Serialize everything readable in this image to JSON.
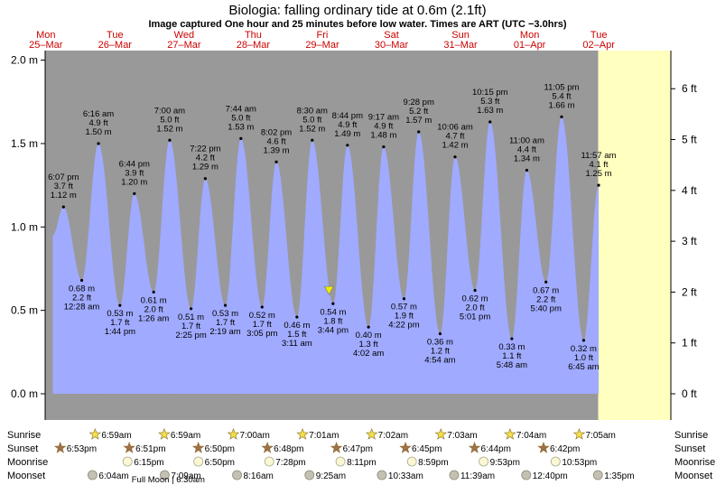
{
  "title": "Biologia: falling  ordinary tide at 0.6m (2.1ft)",
  "subtitle": "Image captured One hour and 25 minutes before low water. Times are ART (UTC −3.0hrs)",
  "colors": {
    "day_band": "#ffffc0",
    "night_band": "#999999",
    "tide_fill": "#a0aaff",
    "day_header": "#cc0000",
    "marker": "#eeee00"
  },
  "days": [
    {
      "dow": "Mon",
      "date": "25–Mar",
      "x": 0.0
    },
    {
      "dow": "Tue",
      "date": "26–Mar",
      "x": 1.0
    },
    {
      "dow": "Wed",
      "date": "27–Mar",
      "x": 2.0
    },
    {
      "dow": "Thu",
      "date": "28–Mar",
      "x": 3.0
    },
    {
      "dow": "Fri",
      "date": "29–Mar",
      "x": 4.0
    },
    {
      "dow": "Sat",
      "date": "30–Mar",
      "x": 5.0
    },
    {
      "dow": "Sun",
      "date": "31–Mar",
      "x": 6.0
    },
    {
      "dow": "Mon",
      "date": "01–Apr",
      "x": 7.0
    },
    {
      "dow": "Tue",
      "date": "02–Apr",
      "x": 8.0
    }
  ],
  "chart_data": {
    "type": "area",
    "x_unit": "days since Mon 25–Mar 00:00",
    "ylabel_left": "m",
    "ylabel_right": "ft",
    "ylim": [
      -0.05,
      2.1
    ],
    "xlim": [
      -0.2,
      8.5
    ],
    "y_ticks_m": [
      {
        "v": 0.0,
        "label": "0.0 m"
      },
      {
        "v": 0.5,
        "label": "0.5 m"
      },
      {
        "v": 1.0,
        "label": "1.0 m"
      },
      {
        "v": 1.5,
        "label": "1.5 m"
      },
      {
        "v": 2.0,
        "label": "2.0 m"
      }
    ],
    "y_ticks_ft": [
      {
        "v": 0,
        "label": "0 ft"
      },
      {
        "v": 1,
        "label": "1 ft"
      },
      {
        "v": 2,
        "label": "2 ft"
      },
      {
        "v": 3,
        "label": "3 ft"
      },
      {
        "v": 4,
        "label": "4 ft"
      },
      {
        "v": 5,
        "label": "5 ft"
      },
      {
        "v": 6,
        "label": "6 ft"
      }
    ],
    "nights": [
      [
        0.2874,
        1.491
      ],
      [
        1.2875,
        2.491
      ],
      [
        2.2868,
        3.491
      ],
      [
        3.2855,
        4.491
      ],
      [
        4.2854,
        5.491
      ],
      [
        5.2808,
        6.491
      ],
      [
        6.2828,
        7.491
      ],
      [
        7.2806,
        8.491
      ]
    ],
    "extremes": [
      {
        "x": 0.7549,
        "m": 1.12,
        "time": "6:07 pm",
        "ft": "3.7 ft",
        "m_label": "1.12 m",
        "type": "high"
      },
      {
        "x": 1.0194,
        "m": 0.68,
        "time": "12:28 am",
        "ft": "2.2 ft",
        "m_label": "0.68 m",
        "type": "low"
      },
      {
        "x": 1.2611,
        "m": 1.5,
        "time": "6:16 am",
        "ft": "4.9 ft",
        "m_label": "1.50 m",
        "type": "high"
      },
      {
        "x": 1.5722,
        "m": 0.53,
        "time": "1:44 pm",
        "ft": "1.7 ft",
        "m_label": "0.53 m",
        "type": "low"
      },
      {
        "x": 1.7806,
        "m": 1.2,
        "time": "6:44 pm",
        "ft": "3.9 ft",
        "m_label": "1.20 m",
        "type": "high"
      },
      {
        "x": 2.0597,
        "m": 0.61,
        "time": "1:26 am",
        "ft": "2.0 ft",
        "m_label": "0.61 m",
        "type": "low"
      },
      {
        "x": 2.2917,
        "m": 1.52,
        "time": "7:00 am",
        "ft": "5.0 ft",
        "m_label": "1.52 m",
        "type": "high"
      },
      {
        "x": 2.6007,
        "m": 0.51,
        "time": "2:25 pm",
        "ft": "1.7 ft",
        "m_label": "0.51 m",
        "type": "low"
      },
      {
        "x": 2.8069,
        "m": 1.29,
        "time": "7:22 pm",
        "ft": "4.2 ft",
        "m_label": "1.29 m",
        "type": "high"
      },
      {
        "x": 3.0965,
        "m": 0.53,
        "time": "2:19 am",
        "ft": "1.7 ft",
        "m_label": "0.53 m",
        "type": "low"
      },
      {
        "x": 3.3222,
        "m": 1.53,
        "time": "7:44 am",
        "ft": "5.0 ft",
        "m_label": "1.53 m",
        "type": "high"
      },
      {
        "x": 3.6285,
        "m": 0.52,
        "time": "3:05 pm",
        "ft": "1.7 ft",
        "m_label": "0.52 m",
        "type": "low"
      },
      {
        "x": 3.8347,
        "m": 1.39,
        "time": "8:02 pm",
        "ft": "4.6 ft",
        "m_label": "1.39 m",
        "type": "high"
      },
      {
        "x": 4.1326,
        "m": 0.46,
        "time": "3:11 am",
        "ft": "1.5 ft",
        "m_label": "0.46 m",
        "type": "low"
      },
      {
        "x": 4.3542,
        "m": 1.52,
        "time": "8:30 am",
        "ft": "5.0 ft",
        "m_label": "1.52 m",
        "type": "high"
      },
      {
        "x": 4.6556,
        "m": 0.54,
        "time": "3:44 pm",
        "ft": "1.8 ft",
        "m_label": "0.54 m",
        "type": "low"
      },
      {
        "x": 4.8639,
        "m": 1.49,
        "time": "8:44 pm",
        "ft": "4.9 ft",
        "m_label": "1.49 m",
        "type": "high"
      },
      {
        "x": 5.1681,
        "m": 0.4,
        "time": "4:02 am",
        "ft": "1.3 ft",
        "m_label": "0.40 m",
        "type": "low"
      },
      {
        "x": 5.3868,
        "m": 1.48,
        "time": "9:17 am",
        "ft": "4.9 ft",
        "m_label": "1.48 m",
        "type": "high"
      },
      {
        "x": 5.6819,
        "m": 0.57,
        "time": "4:22 pm",
        "ft": "1.9 ft",
        "m_label": "0.57 m",
        "type": "low"
      },
      {
        "x": 5.8944,
        "m": 1.57,
        "time": "9:28 pm",
        "ft": "5.2 ft",
        "m_label": "1.57 m",
        "type": "high"
      },
      {
        "x": 6.2042,
        "m": 0.36,
        "time": "4:54 am",
        "ft": "1.2 ft",
        "m_label": "0.36 m",
        "type": "low"
      },
      {
        "x": 6.4208,
        "m": 1.42,
        "time": "10:06 am",
        "ft": "4.7 ft",
        "m_label": "1.42 m",
        "type": "high"
      },
      {
        "x": 6.709,
        "m": 0.62,
        "time": "5:01 pm",
        "ft": "2.0 ft",
        "m_label": "0.62 m",
        "type": "low"
      },
      {
        "x": 6.9271,
        "m": 1.63,
        "time": "10:15 pm",
        "ft": "5.3 ft",
        "m_label": "1.63 m",
        "type": "high"
      },
      {
        "x": 7.2417,
        "m": 0.33,
        "time": "5:48 am",
        "ft": "1.1 ft",
        "m_label": "0.33 m",
        "type": "low"
      },
      {
        "x": 7.4583,
        "m": 1.34,
        "time": "11:00 am",
        "ft": "4.4 ft",
        "m_label": "1.34 m",
        "type": "high"
      },
      {
        "x": 7.7361,
        "m": 0.67,
        "time": "5:40 pm",
        "ft": "2.2 ft",
        "m_label": "0.67 m",
        "type": "low"
      },
      {
        "x": 7.9618,
        "m": 1.66,
        "time": "11:05 pm",
        "ft": "5.4 ft",
        "m_label": "1.66 m",
        "type": "high"
      },
      {
        "x": 8.2813,
        "m": 0.32,
        "time": "6:45 am",
        "ft": "1.0 ft",
        "m_label": "0.32 m",
        "type": "low"
      },
      {
        "x": 8.4979,
        "m": 1.25,
        "time": "11:57 am",
        "ft": "4.1 ft",
        "m_label": "1.25 m",
        "type": "high"
      }
    ],
    "curve_start": {
      "x": 0.6,
      "m": 0.95
    },
    "current": {
      "x": 4.5965,
      "m": 0.6
    }
  },
  "astro": {
    "row_labels": [
      "Sunrise",
      "Sunset",
      "Moonrise",
      "Moonset"
    ],
    "sunrise": [
      {
        "x": 1.291,
        "t": "6:59am"
      },
      {
        "x": 2.291,
        "t": "6:59am"
      },
      {
        "x": 3.2917,
        "t": "7:00am"
      },
      {
        "x": 4.2924,
        "t": "7:01am"
      },
      {
        "x": 5.2931,
        "t": "7:02am"
      },
      {
        "x": 6.2938,
        "t": "7:03am"
      },
      {
        "x": 7.2944,
        "t": "7:04am"
      },
      {
        "x": 8.2951,
        "t": "7:05am"
      }
    ],
    "sunset": [
      {
        "x": 0.7868,
        "t": "6:53pm"
      },
      {
        "x": 1.7854,
        "t": "6:51pm"
      },
      {
        "x": 2.7847,
        "t": "6:50pm"
      },
      {
        "x": 3.7833,
        "t": "6:48pm"
      },
      {
        "x": 4.7826,
        "t": "6:47pm"
      },
      {
        "x": 5.7813,
        "t": "6:45pm"
      },
      {
        "x": 6.7806,
        "t": "6:44pm"
      },
      {
        "x": 7.7792,
        "t": "6:42pm"
      }
    ],
    "moonrise": [
      {
        "x": 1.7604,
        "t": "6:15pm"
      },
      {
        "x": 2.7847,
        "t": "6:50pm"
      },
      {
        "x": 3.8111,
        "t": "7:28pm"
      },
      {
        "x": 4.841,
        "t": "8:11pm"
      },
      {
        "x": 5.8743,
        "t": "8:59pm"
      },
      {
        "x": 6.9118,
        "t": "9:53pm"
      },
      {
        "x": 7.9535,
        "t": "10:53pm"
      }
    ],
    "moonset": [
      {
        "x": 1.2528,
        "t": "6:04am"
      },
      {
        "x": 2.2979,
        "t": "7:09am"
      },
      {
        "x": 3.3444,
        "t": "8:16am"
      },
      {
        "x": 4.3924,
        "t": "9:25am"
      },
      {
        "x": 5.4396,
        "t": "10:33am"
      },
      {
        "x": 6.4854,
        "t": "11:39am"
      },
      {
        "x": 7.5278,
        "t": "12:40pm"
      },
      {
        "x": 8.566,
        "t": "1:35pm"
      }
    ],
    "moon_phase": {
      "x": 2.2708,
      "label": "Full Moon | 6:30am"
    }
  }
}
